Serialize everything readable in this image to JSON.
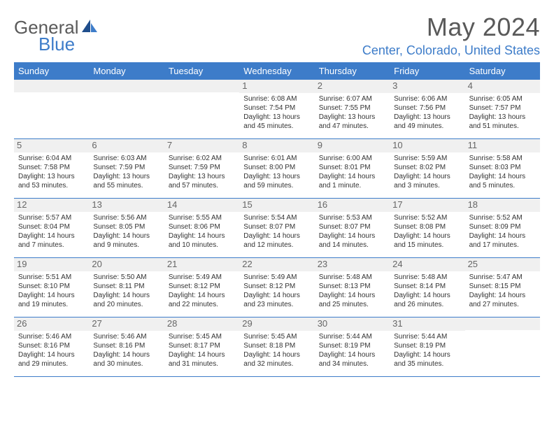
{
  "logo": {
    "word1": "General",
    "word2": "Blue"
  },
  "title": "May 2024",
  "location": "Center, Colorado, United States",
  "colors": {
    "accent": "#3d7cc9",
    "header_text": "#595959",
    "day_num_bg": "#f0f0f0",
    "body_text": "#333333"
  },
  "weekdays": [
    "Sunday",
    "Monday",
    "Tuesday",
    "Wednesday",
    "Thursday",
    "Friday",
    "Saturday"
  ],
  "weeks": [
    [
      null,
      null,
      null,
      {
        "n": "1",
        "sr": "6:08 AM",
        "ss": "7:54 PM",
        "d1": "13 hours",
        "d2": "and 45 minutes."
      },
      {
        "n": "2",
        "sr": "6:07 AM",
        "ss": "7:55 PM",
        "d1": "13 hours",
        "d2": "and 47 minutes."
      },
      {
        "n": "3",
        "sr": "6:06 AM",
        "ss": "7:56 PM",
        "d1": "13 hours",
        "d2": "and 49 minutes."
      },
      {
        "n": "4",
        "sr": "6:05 AM",
        "ss": "7:57 PM",
        "d1": "13 hours",
        "d2": "and 51 minutes."
      }
    ],
    [
      {
        "n": "5",
        "sr": "6:04 AM",
        "ss": "7:58 PM",
        "d1": "13 hours",
        "d2": "and 53 minutes."
      },
      {
        "n": "6",
        "sr": "6:03 AM",
        "ss": "7:59 PM",
        "d1": "13 hours",
        "d2": "and 55 minutes."
      },
      {
        "n": "7",
        "sr": "6:02 AM",
        "ss": "7:59 PM",
        "d1": "13 hours",
        "d2": "and 57 minutes."
      },
      {
        "n": "8",
        "sr": "6:01 AM",
        "ss": "8:00 PM",
        "d1": "13 hours",
        "d2": "and 59 minutes."
      },
      {
        "n": "9",
        "sr": "6:00 AM",
        "ss": "8:01 PM",
        "d1": "14 hours",
        "d2": "and 1 minute."
      },
      {
        "n": "10",
        "sr": "5:59 AM",
        "ss": "8:02 PM",
        "d1": "14 hours",
        "d2": "and 3 minutes."
      },
      {
        "n": "11",
        "sr": "5:58 AM",
        "ss": "8:03 PM",
        "d1": "14 hours",
        "d2": "and 5 minutes."
      }
    ],
    [
      {
        "n": "12",
        "sr": "5:57 AM",
        "ss": "8:04 PM",
        "d1": "14 hours",
        "d2": "and 7 minutes."
      },
      {
        "n": "13",
        "sr": "5:56 AM",
        "ss": "8:05 PM",
        "d1": "14 hours",
        "d2": "and 9 minutes."
      },
      {
        "n": "14",
        "sr": "5:55 AM",
        "ss": "8:06 PM",
        "d1": "14 hours",
        "d2": "and 10 minutes."
      },
      {
        "n": "15",
        "sr": "5:54 AM",
        "ss": "8:07 PM",
        "d1": "14 hours",
        "d2": "and 12 minutes."
      },
      {
        "n": "16",
        "sr": "5:53 AM",
        "ss": "8:07 PM",
        "d1": "14 hours",
        "d2": "and 14 minutes."
      },
      {
        "n": "17",
        "sr": "5:52 AM",
        "ss": "8:08 PM",
        "d1": "14 hours",
        "d2": "and 15 minutes."
      },
      {
        "n": "18",
        "sr": "5:52 AM",
        "ss": "8:09 PM",
        "d1": "14 hours",
        "d2": "and 17 minutes."
      }
    ],
    [
      {
        "n": "19",
        "sr": "5:51 AM",
        "ss": "8:10 PM",
        "d1": "14 hours",
        "d2": "and 19 minutes."
      },
      {
        "n": "20",
        "sr": "5:50 AM",
        "ss": "8:11 PM",
        "d1": "14 hours",
        "d2": "and 20 minutes."
      },
      {
        "n": "21",
        "sr": "5:49 AM",
        "ss": "8:12 PM",
        "d1": "14 hours",
        "d2": "and 22 minutes."
      },
      {
        "n": "22",
        "sr": "5:49 AM",
        "ss": "8:12 PM",
        "d1": "14 hours",
        "d2": "and 23 minutes."
      },
      {
        "n": "23",
        "sr": "5:48 AM",
        "ss": "8:13 PM",
        "d1": "14 hours",
        "d2": "and 25 minutes."
      },
      {
        "n": "24",
        "sr": "5:48 AM",
        "ss": "8:14 PM",
        "d1": "14 hours",
        "d2": "and 26 minutes."
      },
      {
        "n": "25",
        "sr": "5:47 AM",
        "ss": "8:15 PM",
        "d1": "14 hours",
        "d2": "and 27 minutes."
      }
    ],
    [
      {
        "n": "26",
        "sr": "5:46 AM",
        "ss": "8:16 PM",
        "d1": "14 hours",
        "d2": "and 29 minutes."
      },
      {
        "n": "27",
        "sr": "5:46 AM",
        "ss": "8:16 PM",
        "d1": "14 hours",
        "d2": "and 30 minutes."
      },
      {
        "n": "28",
        "sr": "5:45 AM",
        "ss": "8:17 PM",
        "d1": "14 hours",
        "d2": "and 31 minutes."
      },
      {
        "n": "29",
        "sr": "5:45 AM",
        "ss": "8:18 PM",
        "d1": "14 hours",
        "d2": "and 32 minutes."
      },
      {
        "n": "30",
        "sr": "5:44 AM",
        "ss": "8:19 PM",
        "d1": "14 hours",
        "d2": "and 34 minutes."
      },
      {
        "n": "31",
        "sr": "5:44 AM",
        "ss": "8:19 PM",
        "d1": "14 hours",
        "d2": "and 35 minutes."
      },
      null
    ]
  ],
  "labels": {
    "sunrise_prefix": "Sunrise: ",
    "sunset_prefix": "Sunset: ",
    "daylight_prefix": "Daylight: "
  }
}
